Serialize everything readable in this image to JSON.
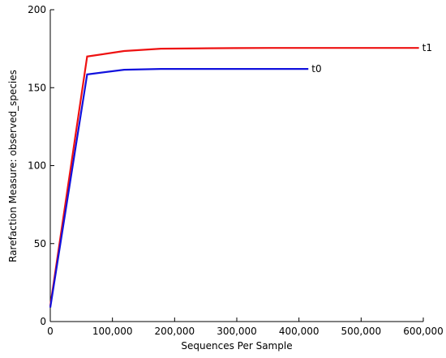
{
  "chart_data": {
    "type": "line",
    "x_label": "Sequences Per Sample",
    "y_label": "Rarefaction Measure: observed_species",
    "xlim": [
      0,
      600000
    ],
    "xticks": [
      0,
      {
        "value": 100000,
        "label": "100,000"
      },
      {
        "value": 200000,
        "label": "200,000"
      },
      {
        "value": 300000,
        "label": "300,000"
      },
      {
        "value": 400000,
        "label": "400,000"
      },
      {
        "value": 500000,
        "label": "500,000"
      },
      {
        "value": 600000,
        "label": "600,000"
      }
    ],
    "ylim": [
      0,
      200
    ],
    "yticks": [
      0,
      50,
      100,
      150,
      200
    ],
    "series": [
      {
        "name": "t1",
        "color": "#ee1111",
        "x": [
          10,
          59300,
          118600,
          177900,
          237200,
          296500,
          355800,
          415100,
          474400,
          533700,
          593000
        ],
        "values": [
          10,
          170,
          173.5,
          175,
          175.2,
          175.4,
          175.5,
          175.5,
          175.5,
          175.5,
          175.5
        ]
      },
      {
        "name": "t0",
        "color": "#1111dd",
        "x": [
          10,
          59300,
          118600,
          177900,
          237200,
          296500,
          355800,
          415100
        ],
        "values": [
          9,
          158.5,
          161.5,
          162,
          162,
          162,
          162,
          162
        ]
      }
    ]
  }
}
